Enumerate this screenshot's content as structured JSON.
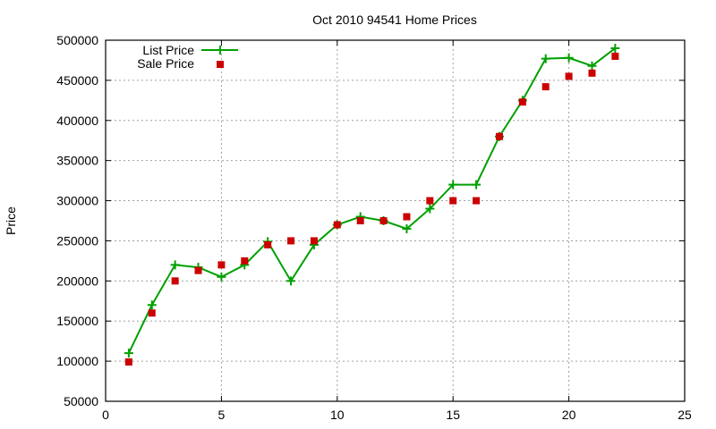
{
  "chart_data": {
    "type": "line",
    "title": "Oct 2010 94541 Home Prices",
    "xlabel": "",
    "ylabel": "Price",
    "xlim": [
      0,
      25
    ],
    "ylim": [
      50000,
      500000
    ],
    "x_ticks": [
      0,
      5,
      10,
      15,
      20,
      25
    ],
    "y_ticks": [
      50000,
      100000,
      150000,
      200000,
      250000,
      300000,
      350000,
      400000,
      450000,
      500000
    ],
    "grid": true,
    "legend_position": "top-left",
    "x": [
      1,
      2,
      3,
      4,
      5,
      6,
      7,
      8,
      9,
      10,
      11,
      12,
      13,
      14,
      15,
      16,
      17,
      18,
      19,
      20,
      21,
      22
    ],
    "series": [
      {
        "name": "List Price",
        "style": "linespoints",
        "marker": "plus",
        "color": "#00a000",
        "values": [
          110000,
          170000,
          220000,
          217000,
          205000,
          220000,
          249000,
          200000,
          245000,
          270000,
          280000,
          275000,
          265000,
          290000,
          320000,
          320000,
          380000,
          425000,
          477000,
          478000,
          468000,
          490000
        ]
      },
      {
        "name": "Sale Price",
        "style": "points",
        "marker": "square",
        "color": "#cc0000",
        "values": [
          99000,
          160000,
          200000,
          213000,
          220000,
          225000,
          245000,
          250000,
          250000,
          270000,
          275000,
          275000,
          280000,
          300000,
          300000,
          300000,
          380000,
          423000,
          442000,
          455000,
          459000,
          480000
        ]
      }
    ]
  }
}
